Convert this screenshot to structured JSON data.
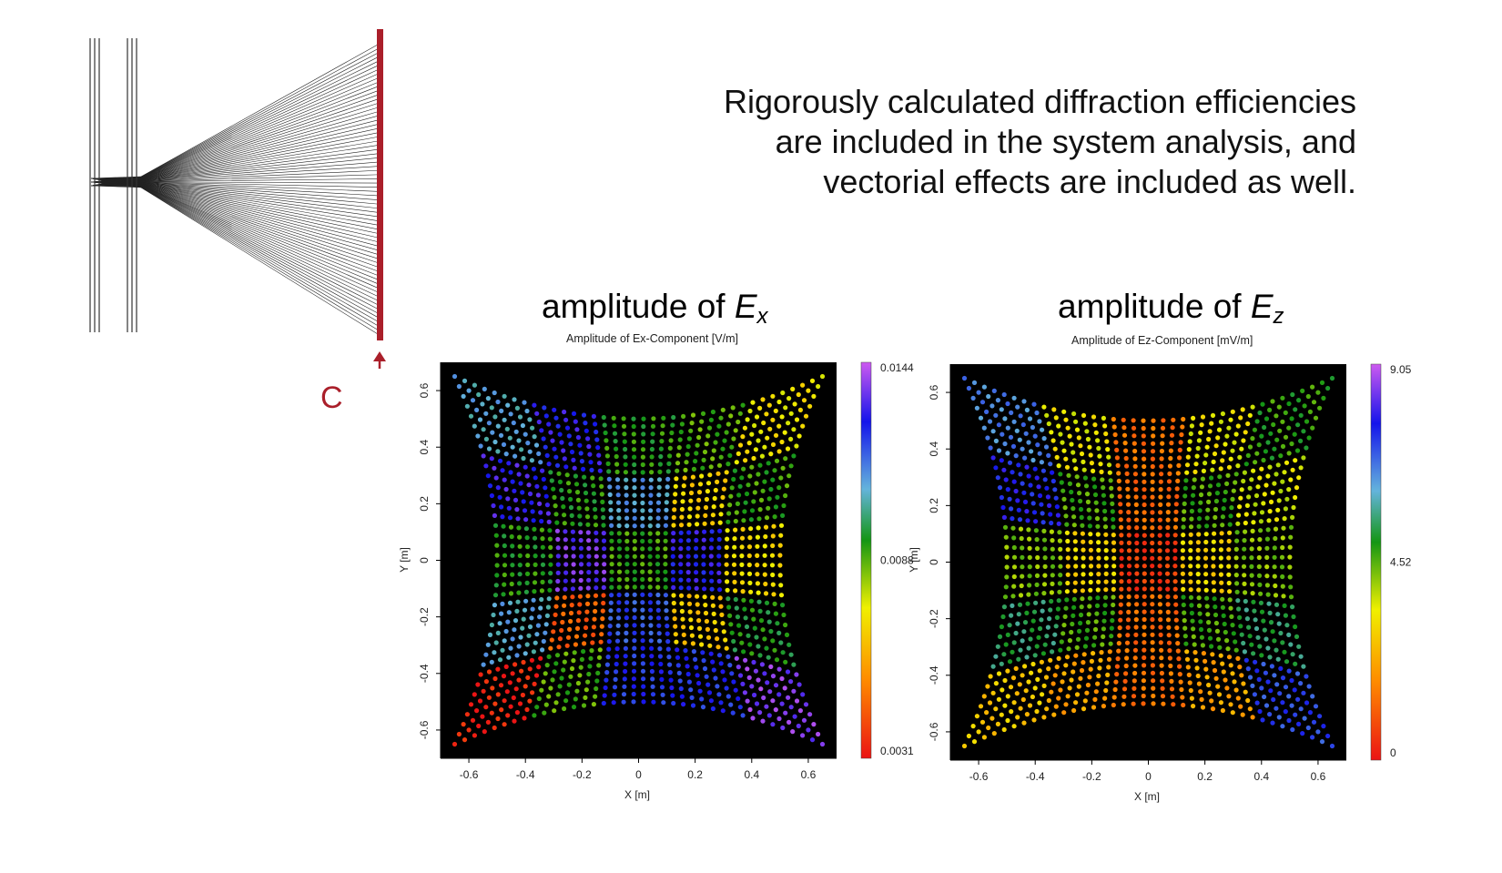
{
  "caption": {
    "line1": "Rigorously calculated diffraction efficiencies",
    "line2": "are included in the system analysis, and",
    "line3": "vectorial effects are included as well."
  },
  "diagram": {
    "plane_label": "C",
    "plane_color": "#aa1f2a"
  },
  "plots": [
    {
      "heading_prefix": "amplitude of ",
      "heading_var": "E",
      "heading_sub": "x",
      "plot_title": "Amplitude of Ex-Component  [V/m]",
      "xlabel": "X [m]",
      "ylabel": "Y [m]",
      "colorbar_top": "0.0144",
      "colorbar_mid": "0.0088",
      "colorbar_bottom": "0.0031"
    },
    {
      "heading_prefix": "amplitude of ",
      "heading_var": "E",
      "heading_sub": "z",
      "plot_title": "Amplitude of Ez-Component  [mV/m]",
      "xlabel": "X [m]",
      "ylabel": "Y [m]",
      "colorbar_top": "9.05",
      "colorbar_mid": "4.52",
      "colorbar_bottom": "0"
    }
  ],
  "chart_data": [
    {
      "type": "heatmap",
      "title": "Amplitude of Ex-Component  [V/m]",
      "xlabel": "X [m]",
      "ylabel": "Y [m]",
      "xlim": [
        -0.7,
        0.7
      ],
      "ylim": [
        -0.7,
        0.7
      ],
      "x_ticks": [
        -0.6,
        -0.4,
        -0.2,
        0,
        0.2,
        0.4,
        0.6
      ],
      "y_ticks": [
        -0.6,
        -0.4,
        -0.2,
        0,
        0.2,
        0.4,
        0.6
      ],
      "x_tick_labels": [
        "-0.6",
        "-0.4",
        "-0.2",
        "0",
        "0.2",
        "0.4",
        "0.6"
      ],
      "y_tick_labels": [
        "-0.6",
        "-0.4",
        "-0.2",
        "0",
        "0.2",
        "0.4",
        "0.6"
      ],
      "colorbar": {
        "min": 0.0031,
        "mid": 0.0088,
        "max": 0.0144,
        "labels": [
          "0.0144",
          "0.0088",
          "0.0031"
        ]
      },
      "grid_rows": 5,
      "grid_cols": 5,
      "values": [
        [
          0.0108,
          0.0128,
          0.0092,
          0.0088,
          0.0072
        ],
        [
          0.013,
          0.0092,
          0.011,
          0.0068,
          0.009
        ],
        [
          0.0092,
          0.0135,
          0.009,
          0.0128,
          0.007
        ],
        [
          0.0108,
          0.0045,
          0.012,
          0.0066,
          0.0094
        ],
        [
          0.0034,
          0.0088,
          0.0124,
          0.0124,
          0.0137
        ]
      ],
      "background": "#000000"
    },
    {
      "type": "heatmap",
      "title": "Amplitude of Ez-Component  [mV/m]",
      "xlabel": "X [m]",
      "ylabel": "Y [m]",
      "xlim": [
        -0.7,
        0.7
      ],
      "ylim": [
        -0.7,
        0.7
      ],
      "x_ticks": [
        -0.6,
        -0.4,
        -0.2,
        0,
        0.2,
        0.4,
        0.6
      ],
      "y_ticks": [
        -0.6,
        -0.4,
        -0.2,
        0,
        0.2,
        0.4,
        0.6
      ],
      "x_tick_labels": [
        "-0.6",
        "-0.4",
        "-0.2",
        "0",
        "0.2",
        "0.4",
        "0.6"
      ],
      "y_tick_labels": [
        "-0.6",
        "-0.4",
        "-0.2",
        "0",
        "0.2",
        "0.4",
        "0.6"
      ],
      "colorbar": {
        "min": 0,
        "mid": 4.52,
        "max": 9.05,
        "labels": [
          "9.05",
          "4.52",
          "0"
        ]
      },
      "grid_rows": 5,
      "grid_cols": 5,
      "values": [
        [
          6.6,
          3.4,
          1.4,
          3.4,
          4.8
        ],
        [
          7.6,
          4.6,
          1.3,
          4.6,
          3.6
        ],
        [
          4.2,
          3.0,
          0.6,
          3.0,
          4.2
        ],
        [
          5.4,
          4.6,
          1.3,
          4.6,
          5.4
        ],
        [
          2.8,
          2.2,
          1.4,
          2.2,
          7.2
        ]
      ],
      "background": "#000000"
    }
  ]
}
